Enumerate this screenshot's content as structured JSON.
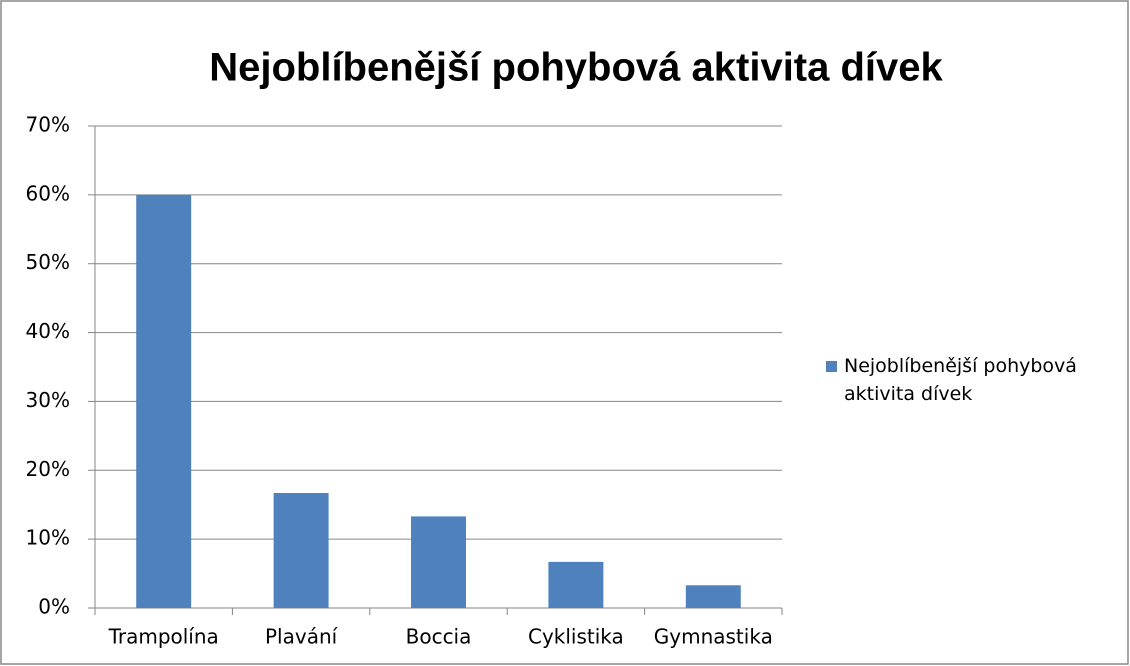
{
  "chart_data": {
    "type": "bar",
    "title": "Nejoblíbenější pohybová aktivita dívek",
    "categories": [
      "Trampolína",
      "Plavání",
      "Boccia",
      "Cyklistika",
      "Gymnastika"
    ],
    "series": [
      {
        "name": "Nejoblíbenější pohybová aktivita dívek",
        "color": "#4f81bd",
        "values": [
          60,
          16.7,
          13.3,
          6.7,
          3.3
        ]
      }
    ],
    "ylim": [
      0,
      70
    ],
    "yticks": [
      {
        "value": 0,
        "label": "0%"
      },
      {
        "value": 10,
        "label": "10%"
      },
      {
        "value": 20,
        "label": "20%"
      },
      {
        "value": 30,
        "label": "30%"
      },
      {
        "value": 40,
        "label": "40%"
      },
      {
        "value": 50,
        "label": "50%"
      },
      {
        "value": 60,
        "label": "60%"
      },
      {
        "value": 70,
        "label": "70%"
      }
    ],
    "grid": true,
    "legend": "right"
  }
}
